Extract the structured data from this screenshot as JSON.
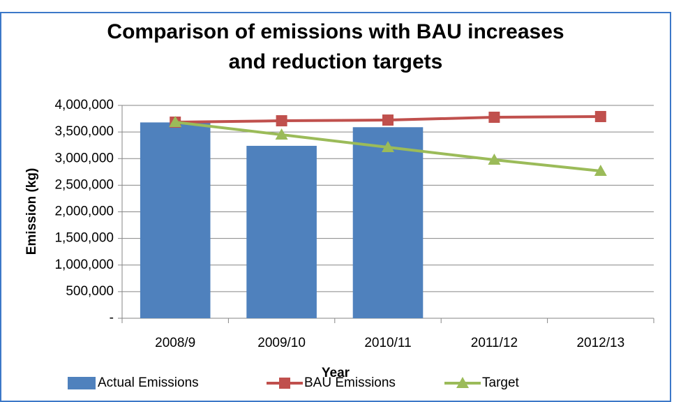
{
  "chart_data": {
    "type": "bar",
    "title": [
      "Comparison of emissions with BAU increases",
      "and reduction targets"
    ],
    "x_label": "Year",
    "y_label": "Emission (kg)",
    "categories": [
      "2008/9",
      "2009/10",
      "2010/11",
      "2011/12",
      "2012/13"
    ],
    "series": [
      {
        "name": "Actual Emissions",
        "type": "bar",
        "color": "#4f81bd",
        "values": [
          3680000,
          3240000,
          3590000,
          null,
          null
        ]
      },
      {
        "name": "BAU Emissions",
        "type": "line",
        "marker": "square",
        "color": "#c0504d",
        "values": [
          3685000,
          3711000,
          3724000,
          3777000,
          3790000
        ]
      },
      {
        "name": "Target",
        "type": "line",
        "marker": "triangle",
        "color": "#9bbb59",
        "values": [
          3685000,
          3449000,
          3213000,
          2977000,
          2767000
        ]
      }
    ],
    "ylim": [
      0,
      4000000
    ],
    "yticks": [
      {
        "value": 0,
        "label": "-"
      },
      {
        "value": 500000,
        "label": "500,000"
      },
      {
        "value": 1000000,
        "label": "1,000,000"
      },
      {
        "value": 1500000,
        "label": "1,500,000"
      },
      {
        "value": 2000000,
        "label": "2,000,000"
      },
      {
        "value": 2500000,
        "label": "2,500,000"
      },
      {
        "value": 3000000,
        "label": "3,000,000"
      },
      {
        "value": 3500000,
        "label": "3,500,000"
      },
      {
        "value": 4000000,
        "label": "4,000,000"
      }
    ],
    "grid": true,
    "legend": "bottom"
  }
}
